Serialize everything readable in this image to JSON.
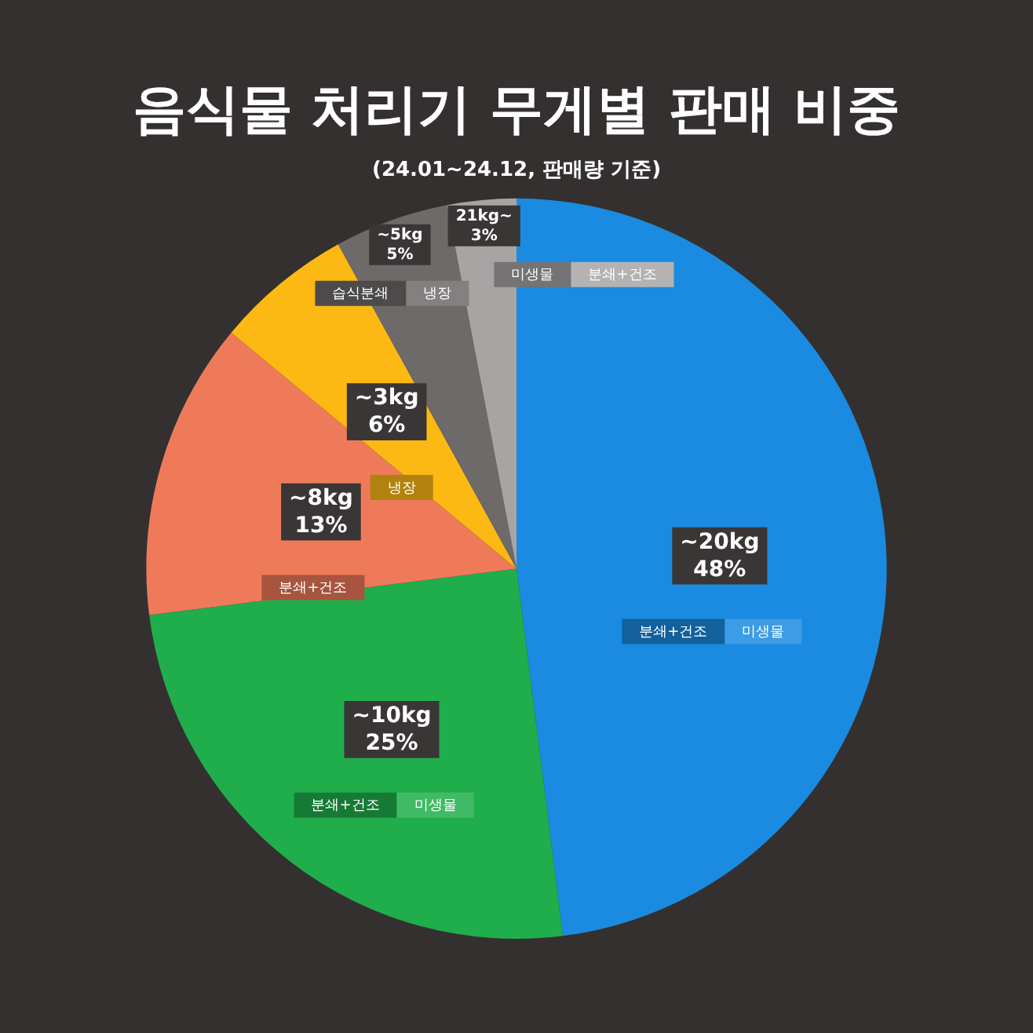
{
  "chart_data": {
    "type": "pie",
    "title": "음식물 처리기 무게별 판매 비중",
    "subtitle": "(24.01~24.12, 판매량 기준)",
    "categories": [
      "~20kg",
      "~10kg",
      "~8kg",
      "~3kg",
      "~5kg",
      "21kg~"
    ],
    "values": [
      48,
      25,
      13,
      6,
      5,
      3
    ],
    "value_labels": [
      "48%",
      "25%",
      "13%",
      "6%",
      "5%",
      "3%"
    ],
    "colors": [
      "#1a8be0",
      "#1fae4b",
      "#ef7a5a",
      "#fdb913",
      "#6e6a6a",
      "#a7a5a4"
    ],
    "annotations": [
      {
        "text": "분쇄+건조",
        "x": "~20kg"
      },
      {
        "text": "미생물",
        "x": "~20kg"
      },
      {
        "text": "분쇄+건조",
        "x": "~10kg"
      },
      {
        "text": "미생물",
        "x": "~10kg"
      },
      {
        "text": "분쇄+건조",
        "x": "~8kg"
      },
      {
        "text": "냉장",
        "x": "~3kg"
      },
      {
        "text": "습식분쇄",
        "x": "~5kg"
      },
      {
        "text": "냉장",
        "x": "~5kg"
      },
      {
        "text": "미생물",
        "x": "21kg~"
      },
      {
        "text": "분쇄+건조",
        "x": "21kg~"
      }
    ],
    "legend": false
  }
}
